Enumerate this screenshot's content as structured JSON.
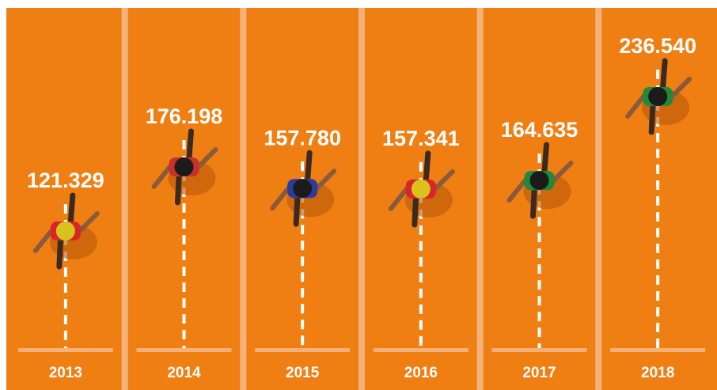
{
  "chart_data": {
    "type": "pictograph",
    "categories": [
      "2013",
      "2014",
      "2015",
      "2016",
      "2017",
      "2018"
    ],
    "values": [
      121329,
      176198,
      157780,
      157341,
      164635,
      236540
    ],
    "value_labels": [
      "121.329",
      "176.198",
      "157.780",
      "157.341",
      "164.635",
      "236.540"
    ],
    "colors": [
      "#d8252b",
      "#c9302c",
      "#2b3d9c",
      "#d8252b",
      "#1f8a3a",
      "#1f8a3a"
    ]
  }
}
